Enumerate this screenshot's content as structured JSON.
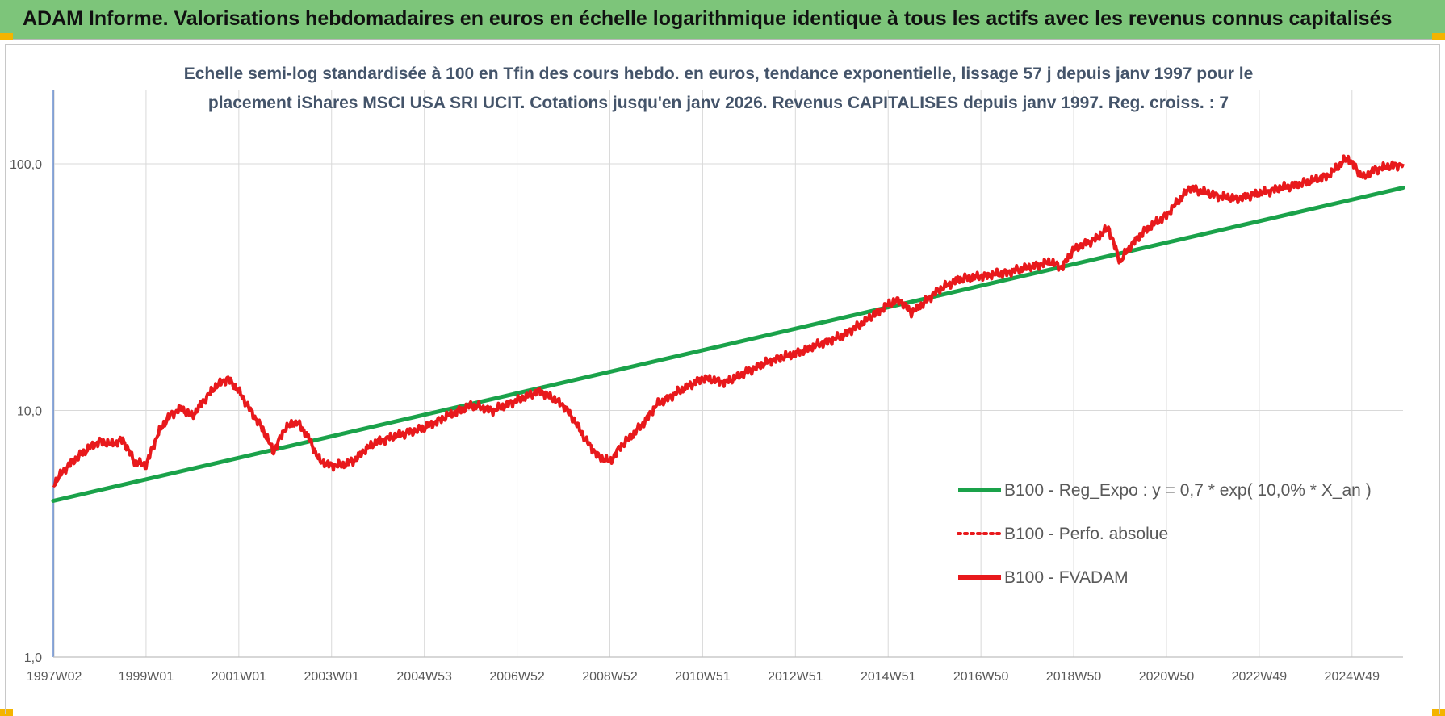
{
  "header": {
    "title": "ADAM Informe. Valorisations hebdomadaires en euros en échelle logarithmique identique à tous les actifs avec les revenus connus capitalisés"
  },
  "chart_data": {
    "type": "line",
    "subtitle_lines": [
      "Echelle semi-log standardisée à 100 en Tfin des cours hebdo. en euros, tendance exponentielle, lissage 57 j depuis janv 1997 pour le",
      "placement iShares MSCI USA SRI UCIT. Cotations jusqu'en janv 2026. Revenus CAPITALISES depuis janv 1997. Reg. croiss. : 7"
    ],
    "y_scale": "log",
    "ylim": [
      1,
      200
    ],
    "y_ticks": [
      1,
      10,
      100
    ],
    "y_tick_labels": [
      "1,0",
      "10,0",
      "100,0"
    ],
    "xlim": [
      1997.0,
      2026.1
    ],
    "x_ticks": [
      1997.02,
      1999.0,
      2001.0,
      2003.0,
      2005.0,
      2007.0,
      2009.0,
      2011.0,
      2013.0,
      2015.0,
      2017.0,
      2019.0,
      2021.0,
      2023.0,
      2025.0
    ],
    "x_tick_labels": [
      "1997W02",
      "1999W01",
      "2001W01",
      "2003W01",
      "2004W53",
      "2006W52",
      "2008W52",
      "2010W51",
      "2012W51",
      "2014W51",
      "2016W50",
      "2018W50",
      "2020W50",
      "2022W49",
      "2024W49"
    ],
    "grid": true,
    "legend_position": "bottom-right",
    "colors": {
      "trend": "#1aa24a",
      "fvadam": "#e8191c",
      "perfo": "#e8191c"
    },
    "series": [
      {
        "name": "B100 - Reg_Expo : y = 0,7 * exp( 10,0% *  X_an )",
        "style": "solid",
        "x": [
          1997.0,
          2026.1
        ],
        "values": [
          4.3,
          80
        ]
      },
      {
        "name": "B100 - Perfo. absolue",
        "style": "dotted",
        "x": [],
        "values": []
      },
      {
        "name": "B100 - FVADAM",
        "style": "solid",
        "x": [
          1997.0,
          1997.25,
          1997.5,
          1997.75,
          1998.0,
          1998.25,
          1998.5,
          1998.75,
          1999.0,
          1999.25,
          1999.5,
          1999.75,
          2000.0,
          2000.25,
          2000.5,
          2000.75,
          2001.0,
          2001.25,
          2001.5,
          2001.75,
          2002.0,
          2002.25,
          2002.5,
          2002.75,
          2003.0,
          2003.25,
          2003.5,
          2003.75,
          2004.0,
          2004.5,
          2005.0,
          2005.5,
          2006.0,
          2006.5,
          2007.0,
          2007.5,
          2008.0,
          2008.25,
          2008.5,
          2008.75,
          2009.0,
          2009.25,
          2009.5,
          2009.75,
          2010.0,
          2010.5,
          2011.0,
          2011.5,
          2012.0,
          2012.5,
          2013.0,
          2013.5,
          2014.0,
          2014.5,
          2015.0,
          2015.25,
          2015.5,
          2015.75,
          2016.0,
          2016.5,
          2017.0,
          2017.5,
          2018.0,
          2018.5,
          2018.75,
          2019.0,
          2019.5,
          2019.75,
          2020.0,
          2020.2,
          2020.5,
          2021.0,
          2021.5,
          2022.0,
          2022.5,
          2023.0,
          2023.5,
          2024.0,
          2024.5,
          2024.9,
          2025.25,
          2025.5,
          2026.1
        ],
        "values": [
          5.0,
          5.8,
          6.4,
          7.0,
          7.5,
          7.3,
          7.6,
          6.2,
          6.0,
          8.0,
          9.5,
          10.2,
          9.5,
          11.0,
          12.5,
          13.5,
          12.0,
          10.0,
          8.5,
          6.8,
          8.5,
          9.0,
          7.8,
          6.2,
          6.0,
          6.0,
          6.3,
          7.0,
          7.5,
          8.0,
          8.5,
          9.5,
          10.5,
          10.0,
          11.0,
          12.0,
          10.5,
          9.0,
          7.5,
          6.5,
          6.2,
          7.2,
          8.0,
          9.0,
          10.5,
          12.0,
          13.5,
          13.0,
          14.5,
          16.0,
          17.0,
          18.5,
          20.0,
          23.0,
          27.0,
          28.0,
          25.0,
          27.0,
          30.0,
          34.0,
          35.0,
          36.0,
          38.0,
          40.0,
          38.0,
          45.0,
          50.0,
          55.0,
          40.0,
          46.0,
          53.0,
          62.0,
          80.0,
          75.0,
          72.0,
          76.0,
          80.0,
          84.0,
          90.0,
          106.0,
          88.0,
          95.0,
          100.0
        ]
      }
    ]
  }
}
